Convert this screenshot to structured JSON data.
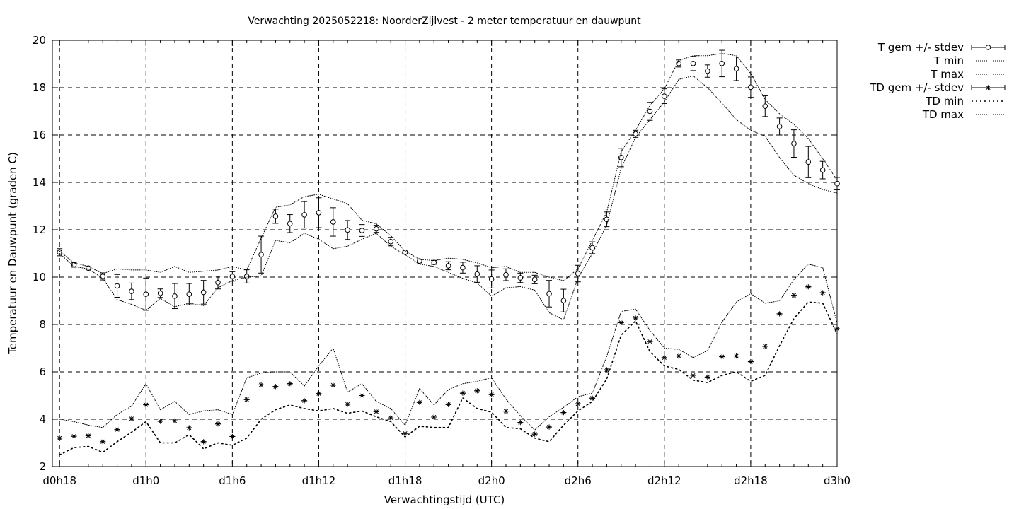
{
  "chart_data": {
    "type": "line",
    "title": "Verwachting 2025052218: NoorderZijlvest - 2 meter temperatuur en dauwpunt",
    "xlabel": "Verwachtingstijd (UTC)",
    "ylabel": "Temperatuur en Dauwpunt (graden C)",
    "xlim": [
      17.5,
      72.0
    ],
    "ylim": [
      2,
      20
    ],
    "x_ticks": [
      {
        "x": 18,
        "label": "d0h18"
      },
      {
        "x": 24,
        "label": "d1h0"
      },
      {
        "x": 30,
        "label": "d1h6"
      },
      {
        "x": 36,
        "label": "d1h12"
      },
      {
        "x": 42,
        "label": "d1h18"
      },
      {
        "x": 48,
        "label": "d2h0"
      },
      {
        "x": 54,
        "label": "d2h6"
      },
      {
        "x": 60,
        "label": "d2h12"
      },
      {
        "x": 66,
        "label": "d2h18"
      },
      {
        "x": 72,
        "label": "d3h0"
      }
    ],
    "y_ticks": [
      2,
      4,
      6,
      8,
      10,
      12,
      14,
      16,
      18,
      20
    ],
    "grid": true,
    "legend_position": "outside-right",
    "x": [
      18,
      19,
      20,
      21,
      22,
      23,
      24,
      25,
      26,
      27,
      28,
      29,
      30,
      31,
      32,
      33,
      34,
      35,
      36,
      37,
      38,
      39,
      40,
      41,
      42,
      43,
      44,
      45,
      46,
      47,
      48,
      49,
      50,
      51,
      52,
      53,
      54,
      55,
      56,
      57,
      58,
      59,
      60,
      61,
      62,
      63,
      64,
      65,
      66,
      67,
      68,
      69,
      70,
      71,
      72
    ],
    "series": [
      {
        "name": "T gem +/- stdev",
        "marker": "circle",
        "values": [
          11.05,
          10.52,
          10.38,
          10.03,
          9.63,
          9.4,
          9.28,
          9.32,
          9.2,
          9.28,
          9.36,
          9.77,
          10.03,
          10.03,
          10.95,
          12.57,
          12.26,
          12.63,
          12.72,
          12.33,
          11.99,
          11.97,
          12.04,
          11.5,
          11.05,
          10.68,
          10.62,
          10.48,
          10.4,
          10.13,
          9.92,
          10.1,
          9.97,
          9.9,
          9.3,
          9.01,
          10.15,
          11.24,
          12.44,
          15.05,
          16.05,
          17.0,
          17.64,
          19.02,
          19.02,
          18.7,
          19.02,
          18.8,
          18.02,
          17.22,
          16.36,
          15.64,
          14.86,
          14.52,
          13.95
        ],
        "errors": [
          0.15,
          0.1,
          0.05,
          0.15,
          0.48,
          0.35,
          0.68,
          0.18,
          0.53,
          0.45,
          0.5,
          0.27,
          0.2,
          0.28,
          0.78,
          0.3,
          0.38,
          0.56,
          0.63,
          0.6,
          0.4,
          0.25,
          0.15,
          0.18,
          0.05,
          0.08,
          0.08,
          0.17,
          0.23,
          0.35,
          0.38,
          0.25,
          0.2,
          0.18,
          0.56,
          0.48,
          0.35,
          0.25,
          0.31,
          0.39,
          0.15,
          0.38,
          0.31,
          0.15,
          0.3,
          0.26,
          0.56,
          0.5,
          0.43,
          0.44,
          0.36,
          0.58,
          0.66,
          0.37,
          0.26
        ]
      },
      {
        "name": "T min",
        "line": "dotted",
        "values": [
          11.0,
          10.45,
          10.35,
          9.95,
          9.05,
          8.85,
          8.6,
          9.1,
          8.75,
          8.9,
          8.8,
          9.55,
          9.85,
          10.0,
          10.05,
          11.55,
          11.45,
          11.85,
          11.6,
          11.2,
          11.3,
          11.6,
          11.85,
          11.3,
          10.95,
          10.55,
          10.45,
          10.2,
          9.95,
          9.75,
          9.2,
          9.55,
          9.6,
          9.45,
          8.5,
          8.2,
          9.95,
          11.0,
          12.2,
          14.6,
          15.9,
          16.65,
          17.4,
          18.35,
          18.5,
          18.0,
          17.35,
          16.65,
          16.2,
          15.95,
          15.05,
          14.3,
          13.95,
          13.7,
          13.55
        ]
      },
      {
        "name": "T max",
        "line": "dotted",
        "values": [
          11.1,
          10.6,
          10.45,
          10.15,
          10.35,
          10.3,
          10.3,
          10.2,
          10.45,
          10.2,
          10.25,
          10.3,
          10.45,
          10.3,
          11.65,
          12.95,
          13.05,
          13.4,
          13.5,
          13.3,
          13.1,
          12.4,
          12.25,
          11.75,
          11.1,
          10.75,
          10.7,
          10.8,
          10.75,
          10.6,
          10.4,
          10.45,
          10.2,
          10.2,
          10.0,
          9.85,
          10.35,
          11.55,
          12.75,
          15.3,
          16.2,
          17.25,
          17.95,
          19.15,
          19.35,
          19.35,
          19.45,
          19.35,
          18.6,
          17.5,
          16.9,
          16.45,
          15.85,
          15.0,
          14.1
        ]
      },
      {
        "name": "TD gem +/- stdev",
        "marker": "asterisk",
        "values": [
          3.2,
          3.28,
          3.3,
          3.05,
          3.56,
          4.02,
          4.61,
          3.91,
          3.93,
          3.64,
          3.05,
          3.8,
          3.27,
          4.83,
          5.45,
          5.38,
          5.5,
          4.78,
          5.08,
          5.44,
          4.63,
          5.0,
          4.32,
          4.06,
          3.4,
          4.71,
          4.09,
          4.62,
          5.1,
          5.2,
          5.04,
          4.34,
          3.86,
          3.37,
          3.67,
          4.28,
          4.65,
          4.89,
          6.09,
          8.08,
          8.27,
          7.28,
          6.6,
          6.67,
          5.85,
          5.78,
          6.64,
          6.67,
          6.43,
          7.08,
          8.45,
          9.23,
          9.59,
          9.34,
          7.82
        ]
      },
      {
        "name": "TD min",
        "line": "dotted",
        "values": [
          2.5,
          2.8,
          2.85,
          2.6,
          3.05,
          3.45,
          3.9,
          3.0,
          3.0,
          3.35,
          2.75,
          3.0,
          2.9,
          3.2,
          4.0,
          4.4,
          4.6,
          4.45,
          4.35,
          4.45,
          4.25,
          4.35,
          4.1,
          3.9,
          3.25,
          3.7,
          3.65,
          3.65,
          4.9,
          4.45,
          4.3,
          3.65,
          3.6,
          3.2,
          3.05,
          3.75,
          4.35,
          4.75,
          5.7,
          7.55,
          8.15,
          6.85,
          6.25,
          6.1,
          5.65,
          5.55,
          5.85,
          6.0,
          5.6,
          5.85,
          7.1,
          8.25,
          8.95,
          8.9,
          7.6
        ]
      },
      {
        "name": "TD max",
        "line": "dotted",
        "values": [
          4.0,
          3.9,
          3.75,
          3.65,
          4.2,
          4.55,
          5.5,
          4.4,
          4.75,
          4.2,
          4.35,
          4.4,
          4.2,
          5.75,
          5.95,
          6.0,
          6.0,
          5.4,
          6.25,
          7.0,
          5.15,
          5.5,
          4.75,
          4.45,
          3.75,
          5.3,
          4.6,
          5.25,
          5.5,
          5.6,
          5.75,
          4.85,
          4.15,
          3.55,
          4.1,
          4.5,
          4.95,
          5.1,
          6.65,
          8.55,
          8.65,
          7.75,
          7.0,
          6.95,
          6.6,
          6.9,
          8.1,
          8.95,
          9.3,
          8.9,
          9.0,
          9.9,
          10.55,
          10.4,
          8.05
        ]
      }
    ]
  }
}
